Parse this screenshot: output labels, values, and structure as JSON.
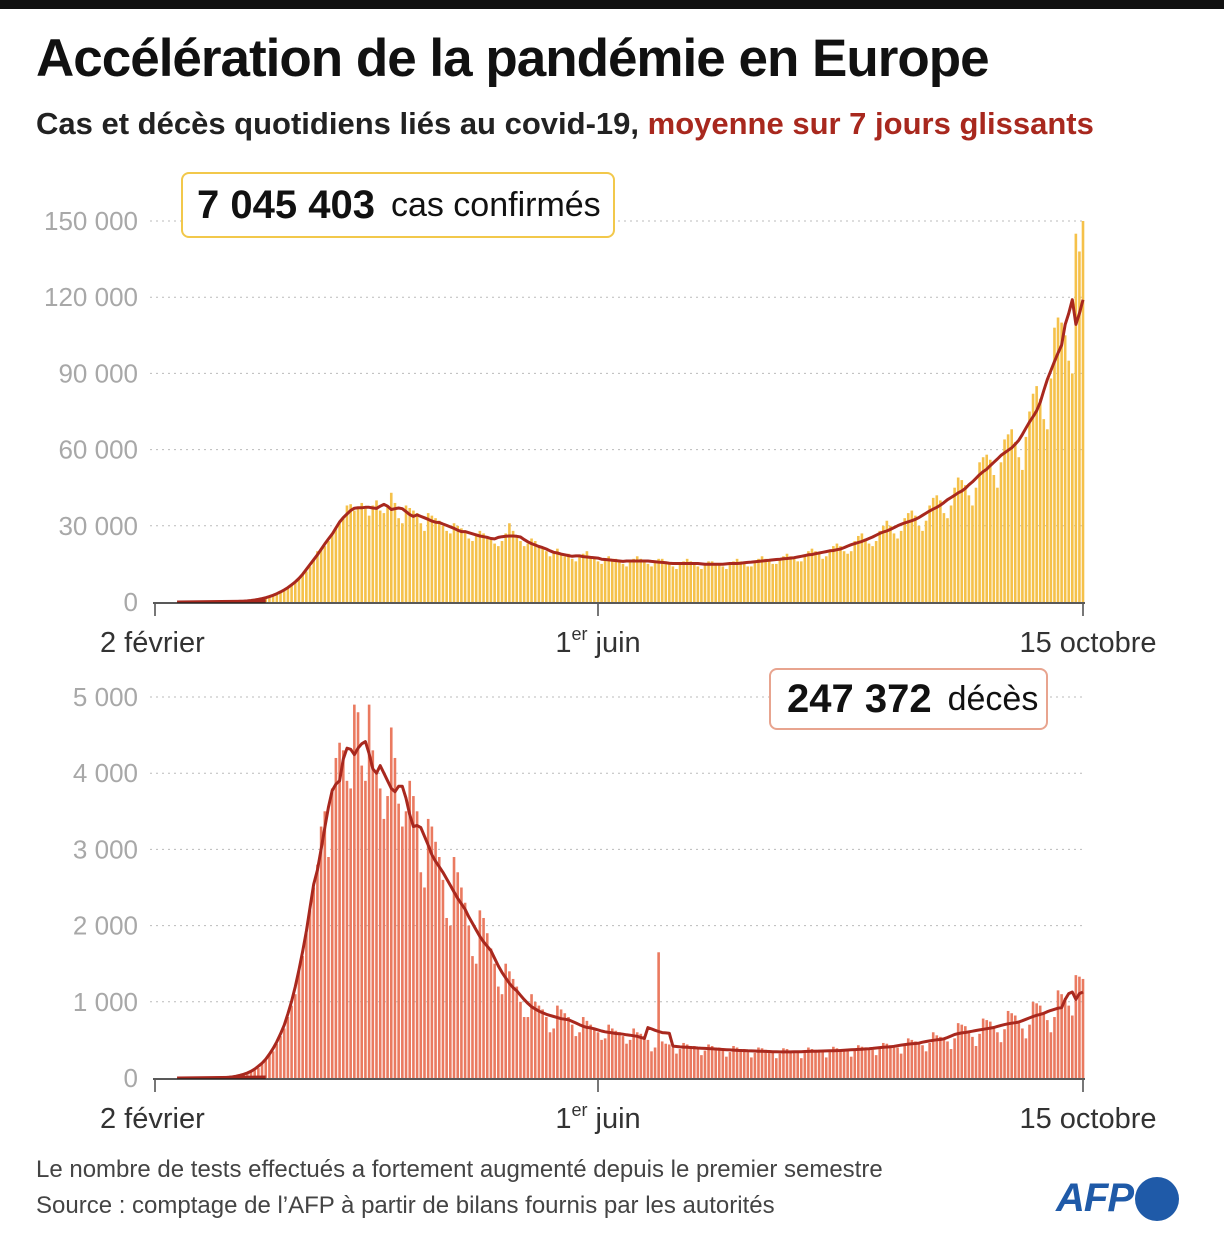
{
  "title": "Accélération de la pandémie en Europe",
  "subtitle": "Cas et décès quotidiens liés au covid-19,",
  "subtitle_highlight": "moyenne sur 7 jours glissants",
  "footnote": "Le nombre de tests effectués a fortement augmenté depuis le premier semestre",
  "source": "Source : comptage de l’AFP à partir de bilans fournis par les autorités",
  "logo_text": "AFP",
  "colors": {
    "cases_bar": "#f5c14a",
    "deaths_bar": "#ea7a60",
    "avg_line": "#a8281e",
    "grid": "#bbbbbb",
    "tick_label": "#a8a8a8",
    "logo": "#1f5aa8"
  },
  "chart_data": [
    {
      "type": "bar",
      "name": "cases",
      "total_value": "7 045 403",
      "total_label": "cas confirmés",
      "x_start": "2020-02-02",
      "x_end": "2020-10-15",
      "x_ticks": [
        {
          "day": 0,
          "label": "2  février",
          "sup": ""
        },
        {
          "day": 120,
          "label": "juin",
          "prefix": "1",
          "sup": "er"
        },
        {
          "day": 256,
          "label": "15  octobre",
          "sup": ""
        }
      ],
      "y_ticks": [
        {
          "v": 0,
          "label": "0"
        },
        {
          "v": 30000,
          "label": "30 000"
        },
        {
          "v": 60000,
          "label": "60 000"
        },
        {
          "v": 90000,
          "label": "90 000"
        },
        {
          "v": 120000,
          "label": "120 000"
        },
        {
          "v": 150000,
          "label": "150 000"
        }
      ],
      "ylim": [
        0,
        150000
      ],
      "series_line": "moyenne sur 7 jours glissants",
      "daily": [
        0,
        0,
        0,
        0,
        0,
        0,
        0,
        0,
        0,
        0,
        0,
        0,
        0,
        0,
        0,
        0,
        0,
        0,
        0,
        10,
        50,
        80,
        150,
        200,
        300,
        400,
        500,
        700,
        900,
        1200,
        1500,
        2000,
        2500,
        3000,
        3800,
        4500,
        5500,
        6500,
        7500,
        9000,
        10500,
        12000,
        14000,
        17000,
        20000,
        21000,
        22000,
        24000,
        27000,
        29000,
        31000,
        33000,
        38000,
        38500,
        36000,
        37000,
        39000,
        37000,
        34000,
        38000,
        40000,
        36000,
        35000,
        38000,
        43000,
        39000,
        33000,
        31000,
        38000,
        37000,
        36000,
        35000,
        31000,
        28000,
        35000,
        34000,
        33000,
        32000,
        30000,
        28000,
        27000,
        31000,
        30000,
        29000,
        28000,
        25000,
        24000,
        27000,
        28000,
        27000,
        26000,
        25000,
        23000,
        22000,
        24000,
        27000,
        31000,
        28000,
        26000,
        24000,
        22000,
        23000,
        25000,
        24000,
        22000,
        21000,
        20000,
        18000,
        20000,
        21000,
        19000,
        18000,
        19000,
        17000,
        16000,
        18000,
        19000,
        20000,
        18000,
        17000,
        16000,
        15000,
        17000,
        18000,
        17000,
        17000,
        16000,
        15000,
        14000,
        16000,
        17000,
        18000,
        17000,
        16000,
        15000,
        14000,
        16000,
        17000,
        17000,
        16000,
        15000,
        14000,
        13000,
        15000,
        16000,
        17000,
        16000,
        15000,
        14000,
        13000,
        15000,
        16000,
        16000,
        15000,
        15000,
        14000,
        13000,
        15000,
        16000,
        17000,
        16000,
        15000,
        14000,
        14000,
        16000,
        17000,
        18000,
        17000,
        16000,
        15000,
        15000,
        17000,
        18000,
        19000,
        18000,
        17000,
        16000,
        16000,
        18000,
        20000,
        21000,
        20000,
        19000,
        17000,
        18000,
        20000,
        22000,
        23000,
        22000,
        20000,
        19000,
        20000,
        24000,
        26000,
        27000,
        25000,
        23000,
        22000,
        24000,
        28000,
        30000,
        32000,
        30000,
        27000,
        25000,
        28000,
        33000,
        35000,
        36000,
        34000,
        30000,
        28000,
        32000,
        38000,
        41000,
        42000,
        40000,
        35000,
        33000,
        38000,
        45000,
        49000,
        48000,
        46000,
        42000,
        38000,
        45000,
        55000,
        57000,
        58000,
        56000,
        50000,
        45000,
        55000,
        64000,
        66000,
        68000,
        63000,
        57000,
        52000,
        65000,
        75000,
        82000,
        85000,
        80000,
        72000,
        68000,
        88000,
        108000,
        112000,
        110000,
        105000,
        95000,
        90000,
        145000,
        138000,
        150000
      ]
    },
    {
      "type": "bar",
      "name": "deaths",
      "total_value": "247 372",
      "total_label": "décès",
      "x_start": "2020-02-02",
      "x_end": "2020-10-15",
      "x_ticks": [
        {
          "day": 0,
          "label": "2 février",
          "sup": ""
        },
        {
          "day": 120,
          "label": "juin",
          "prefix": "1",
          "sup": "er"
        },
        {
          "day": 256,
          "label": "15 octobre",
          "sup": ""
        }
      ],
      "y_ticks": [
        {
          "v": 0,
          "label": "0"
        },
        {
          "v": 1000,
          "label": "1 000"
        },
        {
          "v": 2000,
          "label": "2 000"
        },
        {
          "v": 3000,
          "label": "3 000"
        },
        {
          "v": 4000,
          "label": "4 000"
        },
        {
          "v": 5000,
          "label": "5 000"
        }
      ],
      "ylim": [
        0,
        5000
      ],
      "series_line": "moyenne sur 7 jours glissants",
      "daily": [
        0,
        0,
        0,
        0,
        0,
        0,
        0,
        0,
        0,
        0,
        0,
        0,
        0,
        0,
        0,
        0,
        0,
        0,
        0,
        0,
        5,
        10,
        20,
        30,
        40,
        60,
        80,
        100,
        130,
        180,
        230,
        300,
        350,
        450,
        550,
        650,
        800,
        950,
        1100,
        1400,
        1600,
        1900,
        2200,
        2500,
        2800,
        3300,
        3500,
        2900,
        3800,
        4200,
        4400,
        4300,
        3900,
        3800,
        4900,
        4800,
        4100,
        3900,
        4900,
        4300,
        4000,
        3800,
        3400,
        3700,
        4600,
        4200,
        3600,
        3300,
        3500,
        3900,
        3700,
        3500,
        2700,
        2500,
        3400,
        3300,
        3100,
        2900,
        2600,
        2100,
        2000,
        2900,
        2700,
        2500,
        2300,
        2000,
        1600,
        1500,
        2200,
        2100,
        1900,
        1700,
        1500,
        1200,
        1100,
        1500,
        1400,
        1300,
        1200,
        1000,
        800,
        800,
        1100,
        1000,
        950,
        900,
        800,
        600,
        650,
        950,
        900,
        850,
        800,
        700,
        550,
        600,
        800,
        750,
        700,
        650,
        600,
        500,
        520,
        700,
        650,
        620,
        600,
        550,
        450,
        500,
        650,
        600,
        580,
        550,
        500,
        350,
        400,
        1650,
        480,
        450,
        440,
        400,
        320,
        380,
        460,
        440,
        420,
        420,
        380,
        300,
        360,
        440,
        420,
        400,
        400,
        360,
        280,
        340,
        420,
        400,
        380,
        380,
        340,
        270,
        330,
        400,
        390,
        370,
        360,
        330,
        260,
        320,
        390,
        380,
        360,
        360,
        330,
        260,
        330,
        400,
        380,
        370,
        370,
        340,
        270,
        340,
        410,
        390,
        380,
        380,
        350,
        280,
        360,
        430,
        410,
        400,
        400,
        370,
        300,
        380,
        460,
        450,
        430,
        430,
        400,
        320,
        420,
        520,
        500,
        480,
        470,
        430,
        350,
        460,
        600,
        560,
        540,
        520,
        480,
        380,
        520,
        720,
        700,
        680,
        600,
        540,
        420,
        580,
        780,
        760,
        740,
        650,
        600,
        470,
        640,
        880,
        850,
        820,
        720,
        650,
        520,
        700,
        1000,
        980,
        950,
        850,
        760,
        600,
        800,
        1150,
        1100,
        1050,
        950,
        820,
        1350,
        1330,
        1300
      ]
    }
  ]
}
